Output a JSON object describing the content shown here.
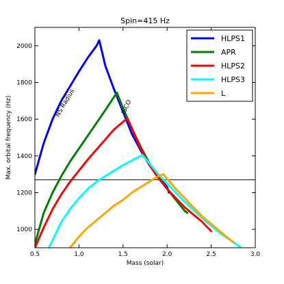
{
  "chart_data": {
    "type": "line",
    "title": "Spin=415 Hz",
    "xlabel": "Mass (solar)",
    "ylabel": "Max. orbital frequency (Hz)",
    "xlim": [
      0.5,
      3.0
    ],
    "ylim": [
      900,
      2100
    ],
    "xticks": [
      "0.5",
      "1.0",
      "1.5",
      "2.0",
      "2.5",
      "3.0"
    ],
    "yticks": [
      "1000",
      "1200",
      "1400",
      "1600",
      "1800",
      "2000"
    ],
    "grid": false,
    "legend_position": "top-right",
    "hline": 1270,
    "annotations": [
      "NS Radius",
      "ISCO"
    ],
    "series": [
      {
        "name": "HLPS1",
        "color": "#0000ff",
        "points": [
          [
            0.5,
            1300
          ],
          [
            0.6,
            1470
          ],
          [
            0.7,
            1600
          ],
          [
            0.8,
            1700
          ],
          [
            0.9,
            1780
          ],
          [
            1.0,
            1860
          ],
          [
            1.1,
            1935
          ],
          [
            1.2,
            2000
          ],
          [
            1.23,
            2030
          ],
          [
            1.3,
            1890
          ],
          [
            1.4,
            1760
          ],
          [
            1.5,
            1640
          ],
          [
            1.6,
            1520
          ],
          [
            1.7,
            1430
          ],
          [
            1.8,
            1350
          ],
          [
            1.9,
            1290
          ],
          [
            2.0,
            1230
          ],
          [
            2.02,
            1200
          ]
        ]
      },
      {
        "name": "APR",
        "color": "#008000",
        "points": [
          [
            0.5,
            920
          ],
          [
            0.6,
            1090
          ],
          [
            0.7,
            1200
          ],
          [
            0.8,
            1290
          ],
          [
            0.9,
            1370
          ],
          [
            1.0,
            1440
          ],
          [
            1.1,
            1510
          ],
          [
            1.2,
            1580
          ],
          [
            1.3,
            1650
          ],
          [
            1.43,
            1745
          ],
          [
            1.5,
            1660
          ],
          [
            1.6,
            1550
          ],
          [
            1.7,
            1450
          ],
          [
            1.8,
            1360
          ],
          [
            1.9,
            1290
          ],
          [
            2.0,
            1220
          ],
          [
            2.1,
            1160
          ],
          [
            2.2,
            1100
          ],
          [
            2.23,
            1090
          ]
        ]
      },
      {
        "name": "HLPS2",
        "color": "#ff0000",
        "points": [
          [
            0.5,
            900
          ],
          [
            0.6,
            1010
          ],
          [
            0.7,
            1110
          ],
          [
            0.8,
            1190
          ],
          [
            0.9,
            1260
          ],
          [
            1.0,
            1320
          ],
          [
            1.1,
            1380
          ],
          [
            1.2,
            1435
          ],
          [
            1.3,
            1490
          ],
          [
            1.4,
            1545
          ],
          [
            1.55,
            1605
          ],
          [
            1.6,
            1550
          ],
          [
            1.7,
            1440
          ],
          [
            1.8,
            1350
          ],
          [
            1.9,
            1280
          ],
          [
            2.0,
            1220
          ],
          [
            2.1,
            1170
          ],
          [
            2.2,
            1120
          ],
          [
            2.3,
            1080
          ],
          [
            2.4,
            1040
          ],
          [
            2.5,
            990
          ]
        ]
      },
      {
        "name": "HLPS3",
        "color": "#00ffff",
        "points": [
          [
            0.66,
            900
          ],
          [
            0.8,
            1040
          ],
          [
            0.9,
            1110
          ],
          [
            1.0,
            1170
          ],
          [
            1.1,
            1220
          ],
          [
            1.2,
            1260
          ],
          [
            1.3,
            1290
          ],
          [
            1.4,
            1320
          ],
          [
            1.5,
            1350
          ],
          [
            1.6,
            1375
          ],
          [
            1.72,
            1405
          ],
          [
            1.8,
            1360
          ],
          [
            1.9,
            1300
          ],
          [
            2.0,
            1250
          ],
          [
            2.2,
            1150
          ],
          [
            2.4,
            1060
          ],
          [
            2.6,
            980
          ],
          [
            2.75,
            930
          ],
          [
            2.83,
            905
          ]
        ]
      },
      {
        "name": "L",
        "color": "#ffa500",
        "points": [
          [
            0.9,
            900
          ],
          [
            1.0,
            960
          ],
          [
            1.1,
            1010
          ],
          [
            1.2,
            1050
          ],
          [
            1.3,
            1090
          ],
          [
            1.4,
            1130
          ],
          [
            1.5,
            1160
          ],
          [
            1.6,
            1200
          ],
          [
            1.7,
            1230
          ],
          [
            1.8,
            1260
          ],
          [
            1.9,
            1290
          ],
          [
            1.96,
            1300
          ],
          [
            2.0,
            1275
          ],
          [
            2.1,
            1220
          ],
          [
            2.2,
            1170
          ],
          [
            2.3,
            1120
          ],
          [
            2.4,
            1070
          ],
          [
            2.5,
            1030
          ],
          [
            2.6,
            990
          ],
          [
            2.7,
            950
          ],
          [
            2.75,
            930
          ]
        ]
      }
    ]
  }
}
